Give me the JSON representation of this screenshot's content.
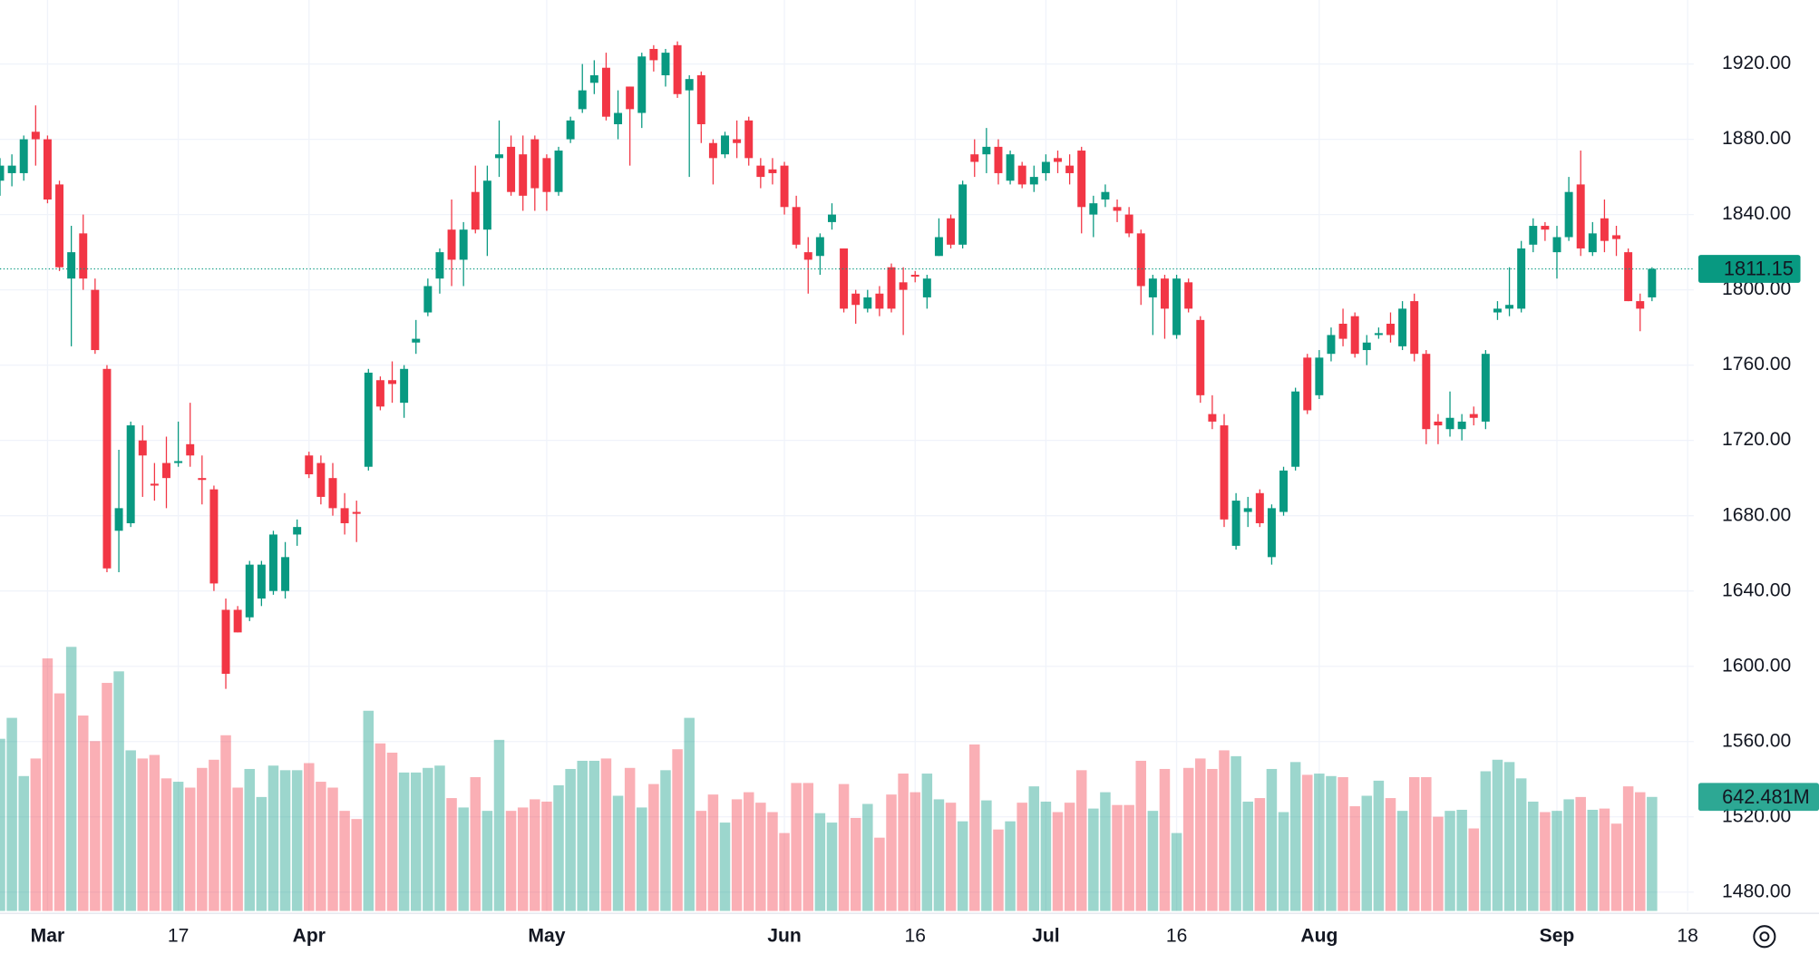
{
  "chart_data": {
    "type": "candlestick",
    "open": [
      1858,
      1862,
      1862,
      1884,
      1880,
      1856,
      1806,
      1830,
      1800,
      1758,
      1672,
      1676,
      1720,
      1697,
      1708,
      1708,
      1718,
      1700,
      1694,
      1630,
      1630,
      1626,
      1636,
      1640,
      1640,
      1670,
      1712,
      1708,
      1700,
      1684,
      1682,
      1706,
      1752,
      1752,
      1740,
      1772,
      1788,
      1806,
      1832,
      1816,
      1852,
      1832,
      1870,
      1876,
      1872,
      1880,
      1870,
      1852,
      1880,
      1896,
      1910,
      1918,
      1888,
      1908,
      1894,
      1928,
      1914,
      1930,
      1906,
      1914,
      1878,
      1872,
      1880,
      1890,
      1866,
      1864,
      1866,
      1844,
      1820,
      1818,
      1836,
      1822,
      1798,
      1790,
      1798,
      1812,
      1804,
      1808,
      1796,
      1818,
      1838,
      1824,
      1872,
      1872,
      1876,
      1858,
      1866,
      1856,
      1862,
      1870,
      1866,
      1874,
      1840,
      1848,
      1844,
      1840,
      1830,
      1796,
      1806,
      1776,
      1804,
      1784,
      1734,
      1728,
      1664,
      1682,
      1692,
      1658,
      1682,
      1706,
      1764,
      1744,
      1766,
      1782,
      1786,
      1768,
      1776,
      1782,
      1770,
      1794,
      1766,
      1730,
      1726,
      1726,
      1734,
      1730,
      1788,
      1790,
      1790,
      1824,
      1834,
      1820,
      1828,
      1856,
      1820,
      1838,
      1829,
      1820,
      1794,
      1796
    ],
    "high": [
      1870,
      1872,
      1882,
      1898,
      1882,
      1858,
      1834,
      1840,
      1806,
      1760,
      1715,
      1730,
      1728,
      1708,
      1722,
      1730,
      1740,
      1712,
      1696,
      1636,
      1632,
      1656,
      1656,
      1672,
      1666,
      1678,
      1714,
      1712,
      1708,
      1692,
      1688,
      1758,
      1754,
      1762,
      1760,
      1784,
      1806,
      1822,
      1848,
      1836,
      1866,
      1866,
      1890,
      1882,
      1882,
      1882,
      1872,
      1876,
      1892,
      1920,
      1922,
      1926,
      1906,
      1908,
      1926,
      1930,
      1928,
      1932,
      1914,
      1916,
      1880,
      1884,
      1890,
      1892,
      1870,
      1870,
      1868,
      1850,
      1828,
      1830,
      1846,
      1822,
      1800,
      1800,
      1802,
      1814,
      1812,
      1810,
      1808,
      1838,
      1840,
      1858,
      1880,
      1886,
      1880,
      1874,
      1868,
      1866,
      1872,
      1874,
      1872,
      1876,
      1850,
      1856,
      1848,
      1844,
      1832,
      1808,
      1808,
      1808,
      1806,
      1786,
      1744,
      1734,
      1692,
      1690,
      1694,
      1686,
      1706,
      1748,
      1766,
      1768,
      1780,
      1790,
      1788,
      1776,
      1780,
      1788,
      1794,
      1798,
      1768,
      1734,
      1746,
      1734,
      1738,
      1768,
      1794,
      1812,
      1826,
      1838,
      1836,
      1834,
      1860,
      1874,
      1836,
      1848,
      1834,
      1822,
      1798,
      1812
    ],
    "low": [
      1850,
      1855,
      1858,
      1866,
      1846,
      1810,
      1770,
      1800,
      1766,
      1650,
      1650,
      1674,
      1690,
      1688,
      1684,
      1706,
      1706,
      1686,
      1640,
      1588,
      1618,
      1624,
      1632,
      1638,
      1636,
      1664,
      1700,
      1686,
      1680,
      1670,
      1666,
      1704,
      1736,
      1740,
      1732,
      1766,
      1786,
      1798,
      1802,
      1802,
      1830,
      1818,
      1860,
      1850,
      1842,
      1842,
      1842,
      1850,
      1878,
      1894,
      1904,
      1890,
      1880,
      1866,
      1886,
      1916,
      1908,
      1902,
      1860,
      1878,
      1856,
      1870,
      1870,
      1866,
      1854,
      1856,
      1840,
      1822,
      1798,
      1808,
      1832,
      1788,
      1782,
      1788,
      1786,
      1788,
      1776,
      1804,
      1790,
      1818,
      1822,
      1822,
      1860,
      1862,
      1856,
      1856,
      1854,
      1852,
      1858,
      1862,
      1856,
      1830,
      1828,
      1844,
      1836,
      1828,
      1792,
      1776,
      1774,
      1774,
      1788,
      1740,
      1726,
      1674,
      1662,
      1674,
      1674,
      1654,
      1680,
      1704,
      1734,
      1742,
      1762,
      1770,
      1764,
      1760,
      1774,
      1772,
      1768,
      1762,
      1718,
      1718,
      1722,
      1720,
      1728,
      1726,
      1784,
      1786,
      1788,
      1820,
      1826,
      1806,
      1826,
      1818,
      1818,
      1820,
      1818,
      1794,
      1778,
      1794
    ],
    "close": [
      1866,
      1866,
      1880,
      1880,
      1848,
      1812,
      1820,
      1806,
      1768,
      1652,
      1684,
      1728,
      1712,
      1696,
      1700,
      1709,
      1712,
      1699,
      1644,
      1596,
      1618,
      1654,
      1654,
      1670,
      1658,
      1674,
      1702,
      1690,
      1684,
      1676,
      1681,
      1756,
      1738,
      1750,
      1758,
      1774,
      1802,
      1820,
      1816,
      1832,
      1832,
      1858,
      1872,
      1852,
      1850,
      1854,
      1852,
      1874,
      1890,
      1906,
      1914,
      1892,
      1894,
      1896,
      1924,
      1922,
      1926,
      1904,
      1912,
      1888,
      1870,
      1882,
      1878,
      1870,
      1860,
      1862,
      1844,
      1824,
      1816,
      1828,
      1840,
      1790,
      1792,
      1796,
      1790,
      1790,
      1800,
      1807,
      1806,
      1828,
      1824,
      1856,
      1868,
      1876,
      1862,
      1872,
      1856,
      1860,
      1868,
      1868,
      1862,
      1844,
      1846,
      1852,
      1842,
      1830,
      1802,
      1806,
      1790,
      1806,
      1790,
      1744,
      1730,
      1678,
      1688,
      1684,
      1676,
      1684,
      1704,
      1746,
      1736,
      1764,
      1776,
      1774,
      1766,
      1772,
      1777,
      1776,
      1790,
      1766,
      1726,
      1728,
      1732,
      1730,
      1732,
      1766,
      1790,
      1792,
      1822,
      1834,
      1832,
      1828,
      1852,
      1822,
      1830,
      1826,
      1827,
      1794,
      1790,
      1811.15
    ],
    "volume": [
      970,
      1088,
      760,
      859,
      1423,
      1226,
      1488,
      1101,
      957,
      1285,
      1350,
      905,
      859,
      879,
      747,
      728,
      695,
      806,
      852,
      990,
      695,
      800,
      642,
      819,
      793,
      793,
      833,
      728,
      695,
      564,
      518,
      1128,
      944,
      892,
      780,
      780,
      806,
      819,
      636,
      583,
      754,
      564,
      964,
      564,
      583,
      629,
      616,
      708,
      800,
      846,
      846,
      859,
      649,
      806,
      583,
      715,
      793,
      911,
      1088,
      564,
      656,
      498,
      629,
      669,
      610,
      557,
      439,
      721,
      721,
      551,
      498,
      715,
      524,
      603,
      413,
      656,
      774,
      669,
      774,
      629,
      610,
      505,
      938,
      623,
      459,
      505,
      610,
      702,
      616,
      557,
      610,
      793,
      577,
      669,
      597,
      597,
      846,
      564,
      800,
      439,
      806,
      859,
      800,
      905,
      872,
      616,
      636,
      800,
      557,
      839,
      767,
      774,
      760,
      754,
      590,
      649,
      734,
      636,
      564,
      754,
      754,
      531,
      564,
      570,
      465,
      787,
      852,
      839,
      747,
      616,
      557,
      564,
      629,
      642,
      570,
      577,
      492,
      702,
      669,
      642.481
    ],
    "last_volume_label": "642.481M",
    "up_color": "#089981",
    "down_color": "#f23645",
    "ylim": [
      1470,
      1954
    ],
    "yticks": [
      {
        "value": 1480,
        "label": "1480.00"
      },
      {
        "value": 1520,
        "label": "1520.00"
      },
      {
        "value": 1560,
        "label": "1560.00"
      },
      {
        "value": 1600,
        "label": "1600.00"
      },
      {
        "value": 1640,
        "label": "1640.00"
      },
      {
        "value": 1680,
        "label": "1680.00"
      },
      {
        "value": 1720,
        "label": "1720.00"
      },
      {
        "value": 1760,
        "label": "1760.00"
      },
      {
        "value": 1800,
        "label": "1800.00"
      },
      {
        "value": 1840,
        "label": "1840.00"
      },
      {
        "value": 1880,
        "label": "1880.00"
      },
      {
        "value": 1920,
        "label": "1920.00"
      }
    ],
    "xticks": [
      {
        "value": 4,
        "label": "Mar"
      },
      {
        "value": 15,
        "label": "17"
      },
      {
        "value": 26,
        "label": "Apr"
      },
      {
        "value": 46,
        "label": "May"
      },
      {
        "value": 66,
        "label": "Jun"
      },
      {
        "value": 77,
        "label": "16"
      },
      {
        "value": 88,
        "label": "Jul"
      },
      {
        "value": 99,
        "label": "16"
      },
      {
        "value": 111,
        "label": "Aug"
      },
      {
        "value": 131,
        "label": "Sep"
      },
      {
        "value": 142,
        "label": "18"
      }
    ],
    "grid": true
  }
}
